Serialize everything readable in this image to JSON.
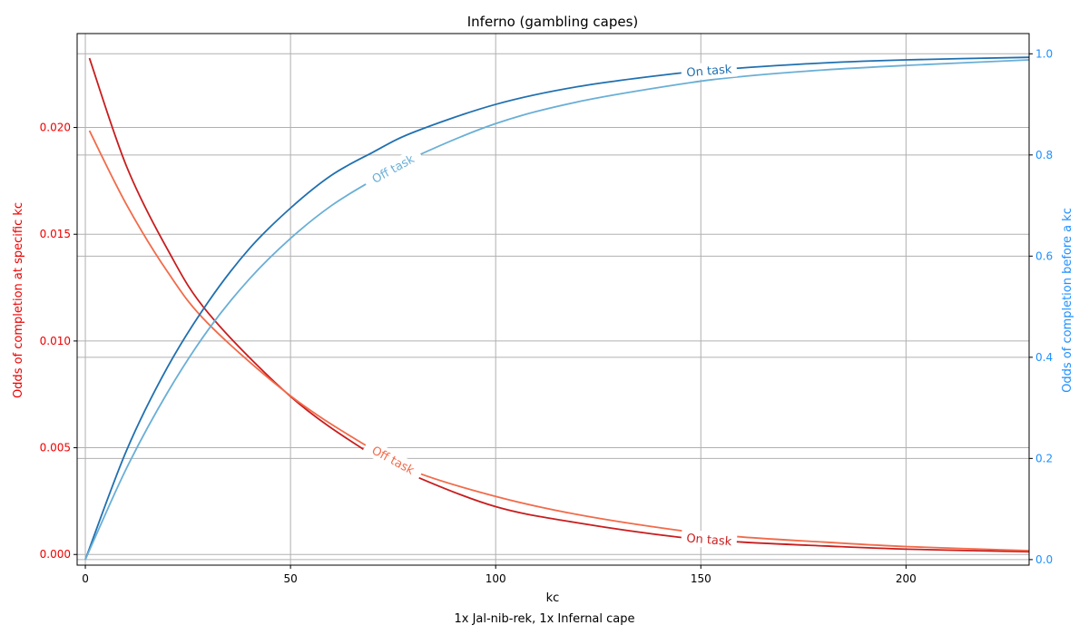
{
  "chart_data": {
    "type": "line",
    "title": "Inferno (gambling capes)",
    "xlabel": "kc",
    "ylabel_left": "Odds of completion at specific kc",
    "ylabel_right": "Odds of completion before a kc",
    "caption": "1x Jal-nib-rek, 1x Infernal cape",
    "xlim": [
      -2,
      230
    ],
    "ylim_left": [
      -0.0005,
      0.0244
    ],
    "ylim_right": [
      -0.011,
      1.04
    ],
    "x_ticks": [
      0,
      50,
      100,
      150,
      200
    ],
    "y_ticks_left": [
      "0.000",
      "0.005",
      "0.010",
      "0.015",
      "0.020"
    ],
    "y_ticks_right": [
      "0.0",
      "0.2",
      "0.4",
      "0.6",
      "0.8",
      "1.0"
    ],
    "grid": true,
    "colors": {
      "left_axis": "#ee0000",
      "right_axis": "#1e90ff",
      "pmf_on_task": "#c81d1e",
      "pmf_off_task": "#f26b4a",
      "cdf_on_task": "#2070b0",
      "cdf_off_task": "#6aafd6"
    },
    "series": [
      {
        "name": "On task",
        "axis": "left",
        "color": "#c81d1e",
        "x": [
          1,
          10,
          20,
          30,
          50,
          68,
          80,
          100,
          120,
          145,
          160,
          180,
          200,
          230
        ],
        "values": [
          0.02325,
          0.0182,
          0.0143,
          0.0113,
          0.0074,
          0.0049,
          0.0037,
          0.00224,
          0.00148,
          0.0008,
          0.00058,
          0.0004,
          0.00025,
          0.00013
        ],
        "label": "On task",
        "label_x": 152
      },
      {
        "name": "Off task",
        "axis": "left",
        "color": "#f26b4a",
        "x": [
          1,
          10,
          20,
          30,
          50,
          68,
          80,
          100,
          120,
          145,
          160,
          180,
          200,
          230
        ],
        "values": [
          0.01985,
          0.0164,
          0.01325,
          0.0108,
          0.00743,
          0.00515,
          0.0039,
          0.00272,
          0.00187,
          0.00112,
          0.00082,
          0.00058,
          0.00037,
          0.00018
        ],
        "label": "Off task",
        "label_x": 75
      },
      {
        "name": "On task",
        "axis": "right",
        "color": "#2070b0",
        "x": [
          0,
          10,
          20,
          30,
          40,
          50,
          60,
          70,
          80,
          100,
          120,
          145,
          160,
          180,
          200,
          230
        ],
        "values": [
          0.0,
          0.215,
          0.38,
          0.51,
          0.615,
          0.695,
          0.76,
          0.805,
          0.845,
          0.9,
          0.935,
          0.962,
          0.972,
          0.982,
          0.988,
          0.993
        ],
        "label": "On task",
        "label_x": 152
      },
      {
        "name": "Off task",
        "axis": "right",
        "color": "#6aafd6",
        "x": [
          0,
          10,
          20,
          30,
          40,
          50,
          60,
          70,
          80,
          100,
          120,
          145,
          160,
          180,
          200,
          230
        ],
        "values": [
          0.0,
          0.18,
          0.33,
          0.455,
          0.555,
          0.635,
          0.7,
          0.75,
          0.795,
          0.862,
          0.905,
          0.94,
          0.955,
          0.968,
          0.977,
          0.988
        ],
        "label": "Off task",
        "label_x": 75
      }
    ]
  }
}
